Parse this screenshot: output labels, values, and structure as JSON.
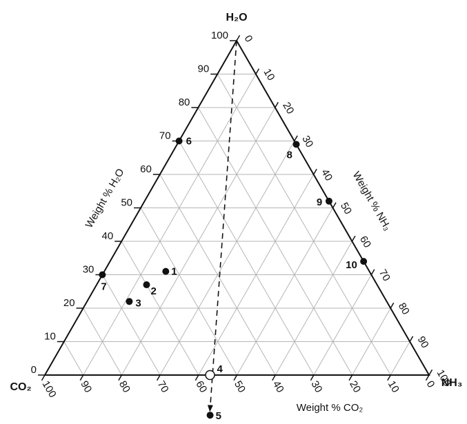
{
  "chart_data": {
    "type": "scatter",
    "subtype": "ternary",
    "vertices": {
      "top": "H₂O",
      "left": "CO₂",
      "right": "NH₃"
    },
    "axes": {
      "h2o": {
        "label": "Weight % H₂O",
        "ticks": [
          "0",
          "10",
          "20",
          "30",
          "40",
          "50",
          "60",
          "70",
          "80",
          "90",
          "100"
        ]
      },
      "nh3": {
        "label": "Weight % NH₃",
        "ticks": [
          "0",
          "10",
          "20",
          "30",
          "40",
          "50",
          "60",
          "70",
          "80",
          "90",
          "100"
        ]
      },
      "co2": {
        "label": "Weight % CO₂",
        "ticks": [
          "100",
          "90",
          "80",
          "70",
          "60",
          "50",
          "40",
          "30",
          "20",
          "10",
          "0"
        ]
      }
    },
    "grid": true,
    "grid_step": 10,
    "points": [
      {
        "label": "1",
        "h2o": 31,
        "co2": 53,
        "nh3": 16,
        "marker": "filled"
      },
      {
        "label": "2",
        "h2o": 27,
        "co2": 60,
        "nh3": 13,
        "marker": "filled"
      },
      {
        "label": "3",
        "h2o": 22,
        "co2": 67,
        "nh3": 11,
        "marker": "filled"
      },
      {
        "label": "4",
        "h2o": 0,
        "co2": 57,
        "nh3": 43,
        "marker": "open"
      },
      {
        "label": "5",
        "h2o": -12,
        "co2": 63,
        "nh3": 49,
        "marker": "filled"
      },
      {
        "label": "6",
        "h2o": 70,
        "co2": 30,
        "nh3": 0,
        "marker": "filled"
      },
      {
        "label": "7",
        "h2o": 30,
        "co2": 70,
        "nh3": 0,
        "marker": "filled"
      },
      {
        "label": "8",
        "h2o": 69,
        "co2": 0,
        "nh3": 31,
        "marker": "filled"
      },
      {
        "label": "9",
        "h2o": 52,
        "co2": 0,
        "nh3": 48,
        "marker": "filled"
      },
      {
        "label": "10",
        "h2o": 34,
        "co2": 0,
        "nh3": 66,
        "marker": "filled"
      }
    ],
    "trend_line": {
      "style": "dashed-arrow",
      "from": {
        "h2o": 100,
        "co2": 0,
        "nh3": 0
      },
      "to": {
        "h2o": -10,
        "co2": 62,
        "nh3": 48
      }
    }
  }
}
